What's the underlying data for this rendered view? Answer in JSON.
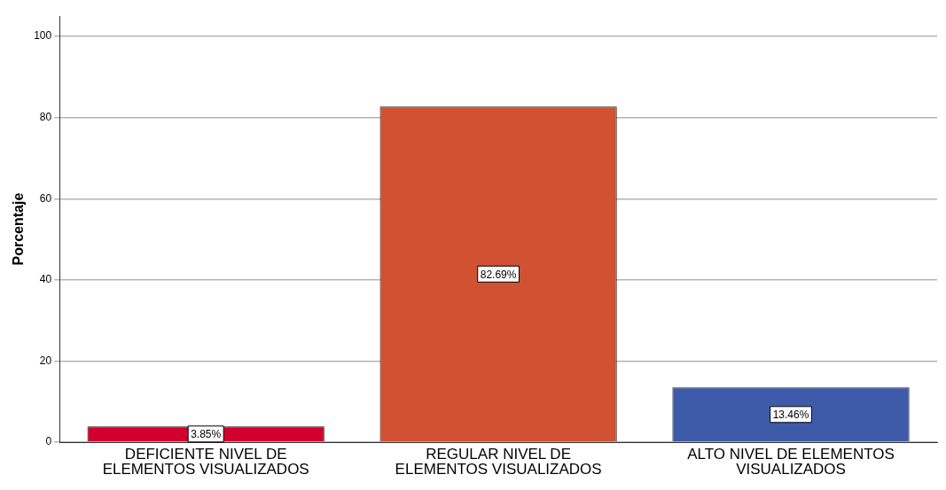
{
  "chart_data": {
    "type": "bar",
    "ylabel": "Porcentaje",
    "categories": [
      "DEFICIENTE NIVEL DE ELEMENTOS VISUALIZADOS",
      "REGULAR NIVEL DE ELEMENTOS VISUALIZADOS",
      "ALTO NIVEL DE ELEMENTOS VISUALIZADOS"
    ],
    "values": [
      3.85,
      82.69,
      13.46
    ],
    "colors": [
      "#d1002e",
      "#d05232",
      "#3e5ba9"
    ],
    "value_labels": [
      "3.85%",
      "82.69%",
      "13.46%"
    ],
    "ylim": [
      0,
      105
    ],
    "yticks": [
      0,
      20,
      40,
      60,
      80,
      100
    ],
    "grid": "y",
    "legend": false
  }
}
